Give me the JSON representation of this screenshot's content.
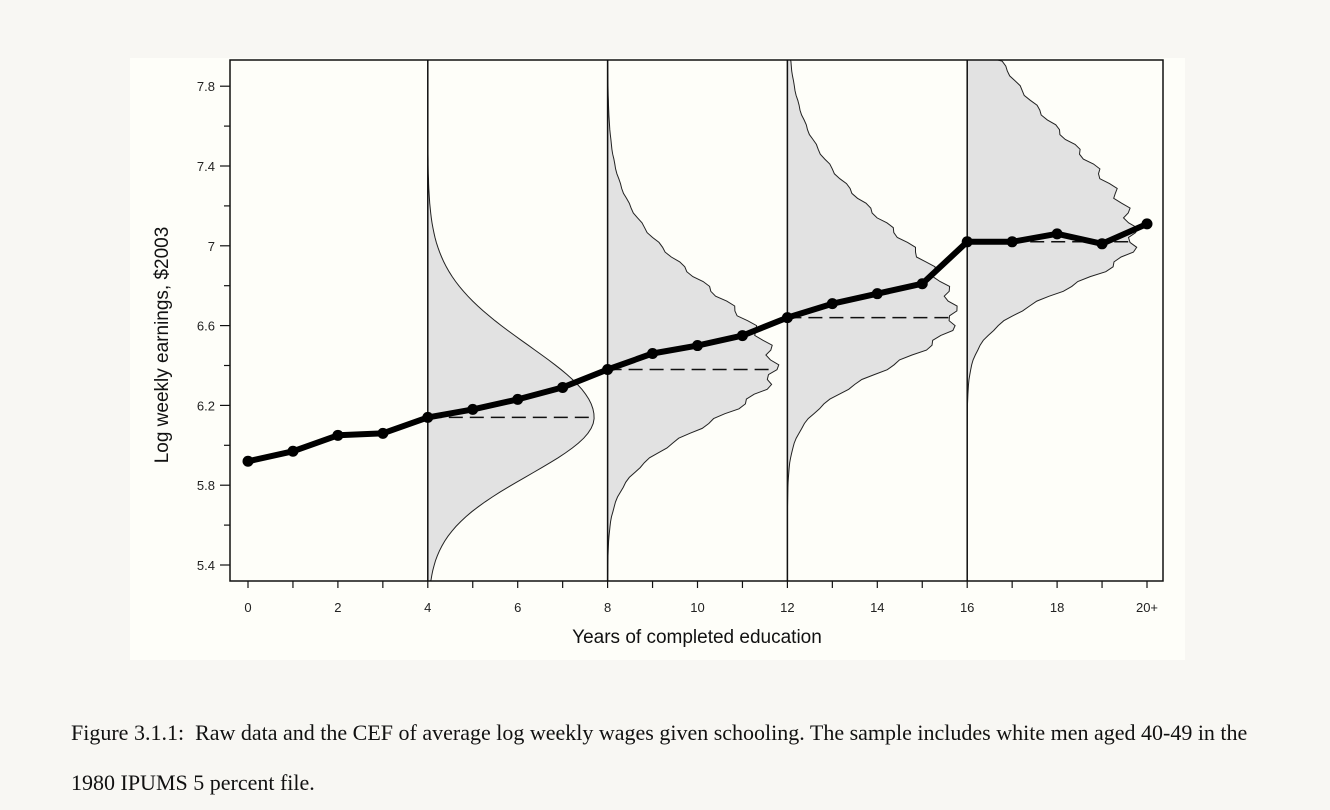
{
  "chart_data": {
    "type": "line",
    "xlabel": "Years of completed education",
    "ylabel": "Log weekly earnings, $2003",
    "xlim": [
      0,
      20
    ],
    "ylim": [
      5.3,
      7.92
    ],
    "x_ticks": [
      0,
      2,
      4,
      6,
      8,
      10,
      12,
      14,
      16,
      18,
      20
    ],
    "x_tick_labels": [
      "0",
      "2",
      "4",
      "6",
      "8",
      "10",
      "12",
      "14",
      "16",
      "18",
      "20+"
    ],
    "y_ticks": [
      5.4,
      5.8,
      6.2,
      6.6,
      7.0,
      7.4,
      7.8
    ],
    "y_tick_labels": [
      "5.4",
      "5.8",
      "6.2",
      "6.6",
      "7",
      "7.4",
      "7.8"
    ],
    "series": [
      {
        "x": [
          0,
          1,
          2,
          3,
          4,
          5,
          6,
          7,
          8,
          9,
          10,
          11,
          12,
          13,
          14,
          15,
          16,
          17,
          18,
          19,
          20
        ],
        "values": [
          5.92,
          5.97,
          6.05,
          6.06,
          6.14,
          6.18,
          6.23,
          6.29,
          6.38,
          6.46,
          6.5,
          6.55,
          6.64,
          6.71,
          6.76,
          6.81,
          7.02,
          7.02,
          7.06,
          7.01,
          7.11
        ]
      }
    ],
    "distributions": [
      {
        "x": 4,
        "mean": 6.14,
        "peak_width": 3.7
      },
      {
        "x": 8,
        "mean": 6.38,
        "peak_width": 3.7
      },
      {
        "x": 12,
        "mean": 6.64,
        "peak_width": 3.7
      },
      {
        "x": 16,
        "mean": 7.02,
        "peak_width": 3.7
      }
    ],
    "grid": false,
    "legend": "none"
  },
  "caption": {
    "label": "Figure 3.1.1:",
    "text": "Raw data and the CEF of average log weekly wages given schooling.  The sample includes white men aged 40-49 in the 1980 IPUMS 5 percent file."
  }
}
